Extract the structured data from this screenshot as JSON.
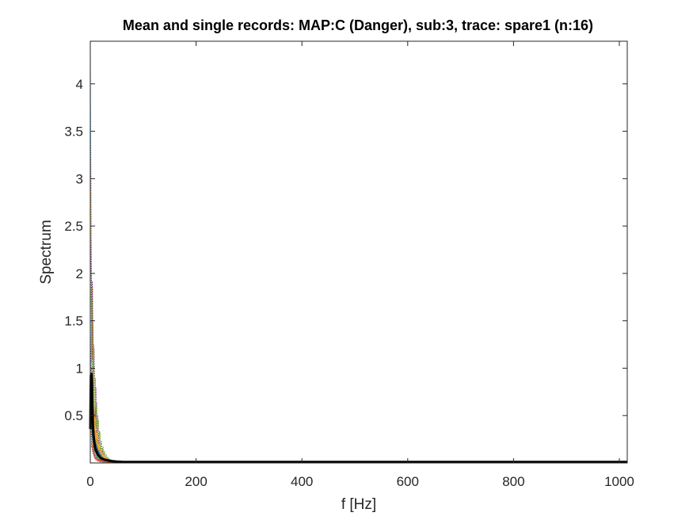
{
  "chart_data": {
    "type": "line",
    "title": "Mean and single records: MAP:C (Danger), sub:3, trace: spare1 (n:16)",
    "xlabel": "f [Hz]",
    "ylabel": "Spectrum",
    "xlim": [
      0,
      1015
    ],
    "ylim": [
      0,
      4.45
    ],
    "xticks": [
      0,
      200,
      400,
      600,
      800,
      1000
    ],
    "xtick_labels": [
      "0",
      "200",
      "400",
      "600",
      "800",
      "1000"
    ],
    "yticks": [
      0.5,
      1,
      1.5,
      2,
      2.5,
      3,
      3.5,
      4
    ],
    "ytick_labels": [
      "0.5",
      "1",
      "1.5",
      "2",
      "2.5",
      "3",
      "3.5",
      "4"
    ],
    "grid": false,
    "series_colors": [
      "#0072bd",
      "#d95319",
      "#edb120",
      "#7e2f8e",
      "#77ac30",
      "#4dbeee",
      "#a2142f",
      "#0072bd",
      "#d95319",
      "#edb120",
      "#7e2f8e",
      "#77ac30",
      "#4dbeee",
      "#a2142f",
      "#0072bd",
      "#d95319"
    ],
    "single_record_peaks": [
      4.3,
      3.3,
      2.9,
      2.4,
      1.9,
      1.6,
      1.3,
      1.15,
      1.0,
      0.9,
      0.8,
      0.7,
      0.6,
      0.55,
      0.5,
      0.45
    ],
    "mean_color": "#000000",
    "mean_series": {
      "x": [
        0,
        1,
        2,
        3,
        4,
        5,
        6,
        8,
        10,
        15,
        20,
        30,
        40,
        50,
        60,
        80,
        100,
        200,
        400,
        600,
        800,
        1000,
        1015
      ],
      "y": [
        0.36,
        0.92,
        0.95,
        0.85,
        0.6,
        0.4,
        0.3,
        0.2,
        0.14,
        0.08,
        0.05,
        0.03,
        0.02,
        0.015,
        0.012,
        0.01,
        0.01,
        0.01,
        0.01,
        0.01,
        0.01,
        0.01,
        0.01
      ]
    }
  }
}
